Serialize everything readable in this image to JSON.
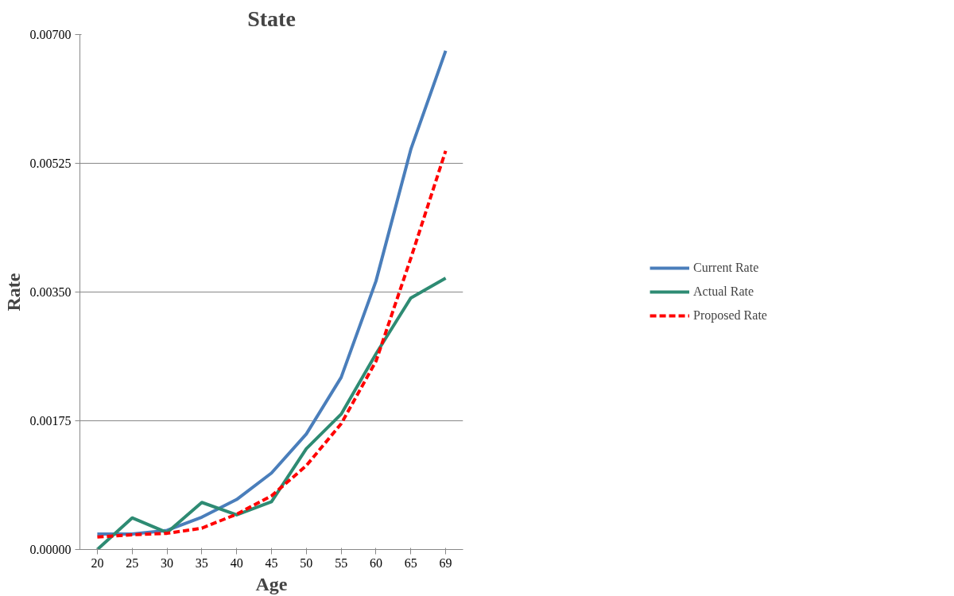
{
  "chart_data": {
    "type": "line",
    "title": "State",
    "xlabel": "Age",
    "ylabel": "Rate",
    "categories": [
      "20",
      "25",
      "30",
      "35",
      "40",
      "45",
      "50",
      "55",
      "60",
      "65",
      "69"
    ],
    "series": [
      {
        "name": "Current Rate",
        "color": "#4a7ebb",
        "values": [
          0.00021,
          0.00021,
          0.00026,
          0.00044,
          0.00068,
          0.00104,
          0.00157,
          0.00234,
          0.00365,
          0.00544,
          0.00678
        ]
      },
      {
        "name": "Actual Rate",
        "color": "#2e8b73",
        "values": [
          0.0,
          0.00043,
          0.00023,
          0.00064,
          0.00047,
          0.00065,
          0.00137,
          0.00184,
          0.00266,
          0.00342,
          0.00369
        ]
      },
      {
        "name": "Proposed Rate",
        "color": "#ff0000",
        "line_style": "dashed",
        "values": [
          0.00017,
          0.0002,
          0.00022,
          0.00029,
          0.00048,
          0.00073,
          0.00114,
          0.00171,
          0.00256,
          0.00396,
          0.00542
        ]
      }
    ],
    "ylim": [
      0,
      0.007
    ],
    "yticks": [
      {
        "value": 0,
        "label": "0.00000"
      },
      {
        "value": 0.00175,
        "label": "0.00175"
      },
      {
        "value": 0.0035,
        "label": "0.00350"
      },
      {
        "value": 0.00525,
        "label": "0.00525"
      },
      {
        "value": 0.007,
        "label": "0.00700"
      }
    ],
    "grid": "y",
    "legend": "right",
    "marker": "none"
  }
}
